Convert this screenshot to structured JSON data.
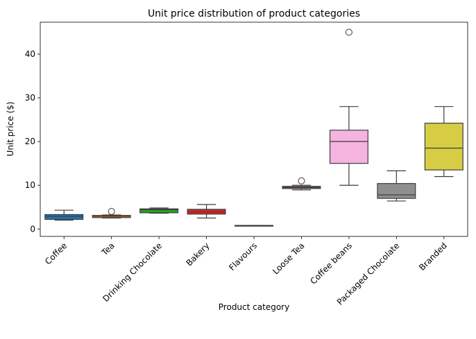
{
  "chart_data": {
    "type": "box",
    "title": "Unit price distribution of product categories",
    "xlabel": "Product category",
    "ylabel": "Unit price ($)",
    "ylim": [
      -1.7,
      47.3
    ],
    "yticks": [
      0,
      10,
      20,
      30,
      40
    ],
    "grid": false,
    "categories": [
      "Coffee",
      "Tea",
      "Drinking Chocolate",
      "Bakery",
      "Flavours",
      "Loose Tea",
      "Coffee beans",
      "Packaged Chocolate",
      "Branded"
    ],
    "boxes": [
      {
        "category": "Coffee",
        "color": "#1f77b4",
        "whisker_low": 2.0,
        "q1": 2.2,
        "median": 2.9,
        "q3": 3.3,
        "whisker_high": 4.3,
        "outliers": []
      },
      {
        "category": "Tea",
        "color": "#ff7f0e",
        "whisker_low": 2.5,
        "q1": 2.6,
        "median": 2.9,
        "q3": 3.1,
        "whisker_high": 3.2,
        "outliers": [
          4.0
        ]
      },
      {
        "category": "Drinking Chocolate",
        "color": "#2ca02c",
        "whisker_low": 3.6,
        "q1": 3.7,
        "median": 4.4,
        "q3": 4.6,
        "whisker_high": 4.8,
        "outliers": []
      },
      {
        "category": "Bakery",
        "color": "#d62728",
        "whisker_low": 2.5,
        "q1": 3.4,
        "median": 3.9,
        "q3": 4.5,
        "whisker_high": 5.6,
        "outliers": []
      },
      {
        "category": "Flavours",
        "color": "#9467bd",
        "whisker_low": 0.8,
        "q1": 0.8,
        "median": 0.8,
        "q3": 0.8,
        "whisker_high": 0.8,
        "outliers": []
      },
      {
        "category": "Loose Tea",
        "color": "#8c564b",
        "whisker_low": 8.95,
        "q1": 9.25,
        "median": 9.5,
        "q3": 9.75,
        "whisker_high": 10.0,
        "outliers": [
          11.0
        ]
      },
      {
        "category": "Coffee beans",
        "color": "#f5b4e0",
        "whisker_low": 10.0,
        "q1": 15.0,
        "median": 20.0,
        "q3": 22.6,
        "whisker_high": 28.0,
        "outliers": [
          45.0
        ]
      },
      {
        "category": "Packaged Chocolate",
        "color": "#8f8f8f",
        "whisker_low": 6.4,
        "q1": 7.0,
        "median": 7.8,
        "q3": 10.4,
        "whisker_high": 13.3,
        "outliers": []
      },
      {
        "category": "Branded",
        "color": "#d6cd45",
        "whisker_low": 12.0,
        "q1": 13.5,
        "median": 18.5,
        "q3": 24.2,
        "whisker_high": 28.0,
        "outliers": []
      }
    ]
  }
}
